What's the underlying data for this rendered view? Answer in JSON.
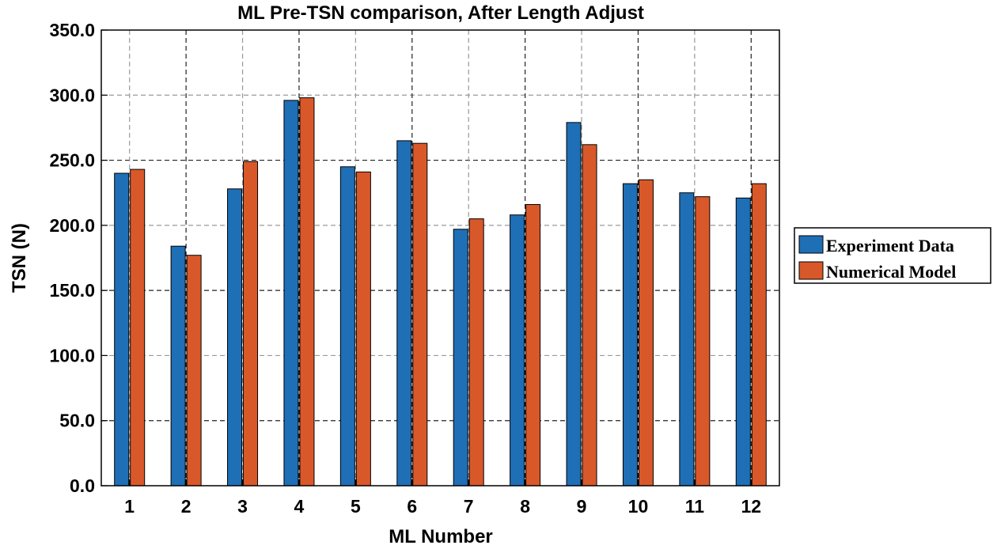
{
  "chart_data": {
    "type": "bar",
    "title": "ML Pre-TSN comparison, After Length Adjust",
    "xlabel": "ML Number",
    "ylabel": "TSN (N)",
    "categories": [
      "1",
      "2",
      "3",
      "4",
      "5",
      "6",
      "7",
      "8",
      "9",
      "10",
      "11",
      "12"
    ],
    "series": [
      {
        "name": "Experiment Data",
        "color": "#1f6fb6",
        "values": [
          240,
          184,
          228,
          296,
          245,
          265,
          197,
          208,
          279,
          232,
          225,
          221
        ]
      },
      {
        "name": "Numerical Model",
        "color": "#d9582a",
        "values": [
          243,
          177,
          249,
          298,
          241,
          263,
          205,
          216,
          262,
          235,
          222,
          232
        ]
      }
    ],
    "ylim": [
      0,
      350
    ],
    "yticks": [
      "0.0",
      "50.0",
      "100.0",
      "150.0",
      "200.0",
      "250.0",
      "300.0",
      "350.0"
    ],
    "grid": true,
    "legend_position": "right"
  }
}
